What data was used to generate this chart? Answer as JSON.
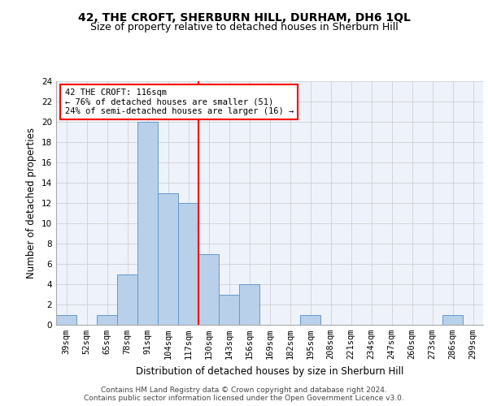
{
  "title1": "42, THE CROFT, SHERBURN HILL, DURHAM, DH6 1QL",
  "title2": "Size of property relative to detached houses in Sherburn Hill",
  "xlabel": "Distribution of detached houses by size in Sherburn Hill",
  "ylabel": "Number of detached properties",
  "categories": [
    "39sqm",
    "52sqm",
    "65sqm",
    "78sqm",
    "91sqm",
    "104sqm",
    "117sqm",
    "130sqm",
    "143sqm",
    "156sqm",
    "169sqm",
    "182sqm",
    "195sqm",
    "208sqm",
    "221sqm",
    "234sqm",
    "247sqm",
    "260sqm",
    "273sqm",
    "286sqm",
    "299sqm"
  ],
  "values": [
    1,
    0,
    1,
    5,
    20,
    13,
    12,
    7,
    3,
    4,
    0,
    0,
    1,
    0,
    0,
    0,
    0,
    0,
    0,
    1,
    0
  ],
  "bar_color": "#b8d0ea",
  "bar_edge_color": "#6699cc",
  "reference_line_idx": 6,
  "annotation_text": "42 THE CROFT: 116sqm\n← 76% of detached houses are smaller (51)\n24% of semi-detached houses are larger (16) →",
  "annotation_box_color": "white",
  "annotation_box_edge_color": "red",
  "vline_color": "red",
  "ylim": [
    0,
    24
  ],
  "yticks": [
    0,
    2,
    4,
    6,
    8,
    10,
    12,
    14,
    16,
    18,
    20,
    22,
    24
  ],
  "grid_color": "#d0d0d0",
  "background_color": "#eef2fb",
  "footer": "Contains HM Land Registry data © Crown copyright and database right 2024.\nContains public sector information licensed under the Open Government Licence v3.0.",
  "title1_fontsize": 10,
  "title2_fontsize": 9,
  "xlabel_fontsize": 8.5,
  "ylabel_fontsize": 8.5,
  "tick_fontsize": 7.5,
  "annotation_fontsize": 7.5,
  "footer_fontsize": 6.5
}
